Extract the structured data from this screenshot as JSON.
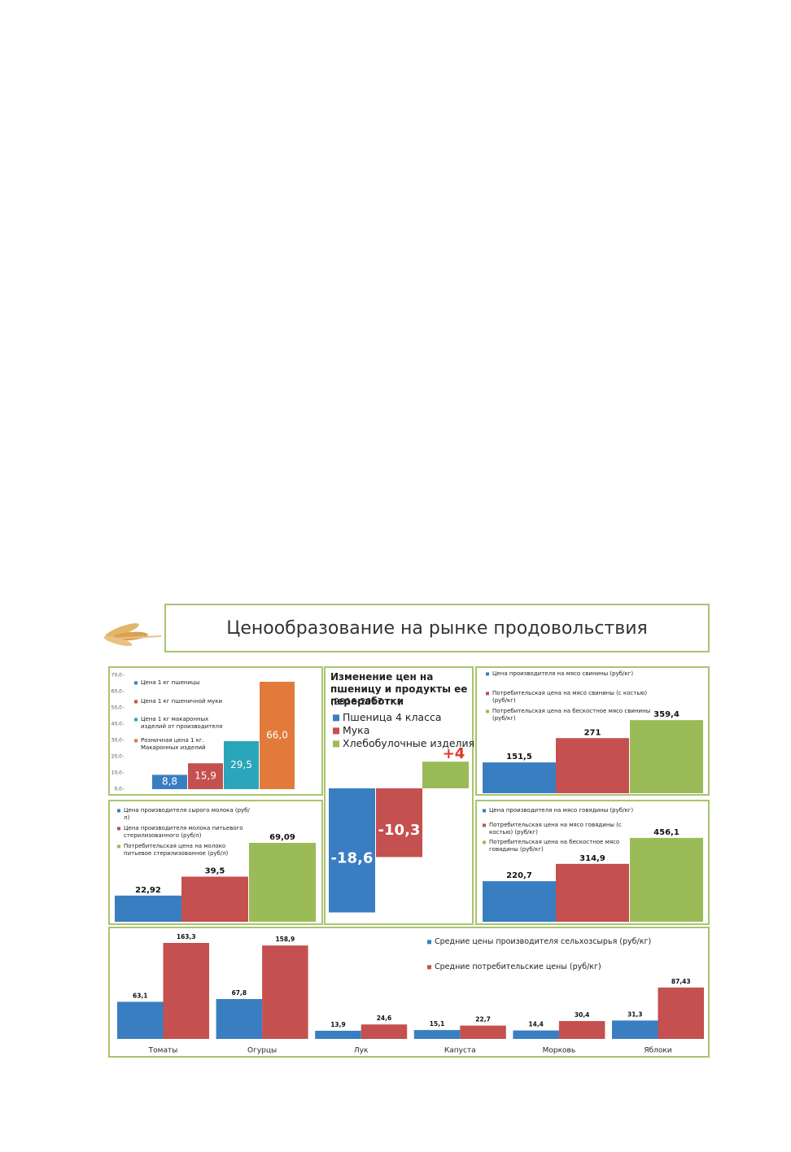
{
  "header": {
    "title": "Ценообразование на рынке продовольствия"
  },
  "chart_data": [
    {
      "type": "bar",
      "ylim": [
        0,
        70
      ],
      "yticks": [
        {
          "value": 0,
          "label": "0,0"
        },
        {
          "value": 10,
          "label": "10,0"
        },
        {
          "value": 20,
          "label": "20,0"
        },
        {
          "value": 30,
          "label": "30,0"
        },
        {
          "value": 40,
          "label": "40,0"
        },
        {
          "value": 50,
          "label": "50,0"
        },
        {
          "value": 60,
          "label": "60,0"
        },
        {
          "value": 70,
          "label": "70,0"
        }
      ],
      "series": [
        {
          "name": "Цена 1 кг пшеницы",
          "color": "#3a7ec2",
          "values": [
            8.8
          ],
          "value_labels": [
            "8,8"
          ]
        },
        {
          "name": "Цена 1 кг пшеничной муки",
          "color": "#c4504f",
          "values": [
            15.9
          ],
          "value_labels": [
            "15,9"
          ]
        },
        {
          "name": "Цена 1 кг макаронных изделий от производителя",
          "color": "#2ba5b9",
          "values": [
            29.5
          ],
          "value_labels": [
            "29,5"
          ]
        },
        {
          "name": "Розничная цена 1 кг. Макаронных изделий",
          "color": "#e27a3c",
          "values": [
            66.0
          ],
          "value_labels": [
            "66,0"
          ]
        }
      ]
    },
    {
      "type": "bar",
      "title": "Изменение цен на пшеницу и продукты ее переработки",
      "subtitle": "(2016-2017 гг.)",
      "series": [
        {
          "name": "Пшеница 4 класса",
          "color": "#3a7ec2",
          "values": [
            -18.6
          ],
          "value_labels": [
            "-18,6"
          ]
        },
        {
          "name": "Мука",
          "color": "#c4504f",
          "values": [
            -10.3
          ],
          "value_labels": [
            "-10,3"
          ]
        },
        {
          "name": "Хлебобулочные изделия",
          "color": "#9bbb59",
          "values": [
            4
          ],
          "value_labels": [
            "+4"
          ]
        }
      ]
    },
    {
      "type": "bar",
      "series": [
        {
          "name": "Цена производителя на мясо свинины (руб/кг)",
          "color": "#3a7ec2",
          "values": [
            151.5
          ],
          "value_labels": [
            "151,5"
          ]
        },
        {
          "name": "Потребительская цена на мясо свинины (с костью) (руб/кг)",
          "color": "#c4504f",
          "values": [
            271
          ],
          "value_labels": [
            "271"
          ]
        },
        {
          "name": "Потребительская цена на бескостное мясо свинины (руб/кг)",
          "color": "#9bbb59",
          "values": [
            359.4
          ],
          "value_labels": [
            "359,4"
          ]
        }
      ]
    },
    {
      "type": "bar",
      "series": [
        {
          "name": "Цена производителя сырого молока (руб/л)",
          "color": "#3a7ec2",
          "values": [
            22.92
          ],
          "value_labels": [
            "22,92"
          ]
        },
        {
          "name": "Цена производителя молока питьевого стерилизованного (руб/л)",
          "color": "#c4504f",
          "values": [
            39.5
          ],
          "value_labels": [
            "39,5"
          ]
        },
        {
          "name": "Потребительская цена на молоко питьевое стерилизованное (руб/л)",
          "color": "#9bbb59",
          "values": [
            69.09
          ],
          "value_labels": [
            "69,09"
          ]
        }
      ]
    },
    {
      "type": "bar",
      "series": [
        {
          "name": "Цена производителя на мясо говядины (руб/кг)",
          "color": "#3a7ec2",
          "values": [
            220.7
          ],
          "value_labels": [
            "220,7"
          ]
        },
        {
          "name": "Потребительская цена на мясо говядины (с костью) (руб/кг)",
          "color": "#c4504f",
          "values": [
            314.9
          ],
          "value_labels": [
            "314,9"
          ]
        },
        {
          "name": "Потребительская цена на бескостное мясо говядины (руб/кг)",
          "color": "#9bbb59",
          "values": [
            456.1
          ],
          "value_labels": [
            "456,1"
          ]
        }
      ]
    },
    {
      "type": "bar",
      "categories": [
        "Томаты",
        "Огурцы",
        "Лук",
        "Капуста",
        "Морковь",
        "Яблоки"
      ],
      "series": [
        {
          "name": "Средние цены производителя сельхозсырья (руб/кг)",
          "color": "#3a7ec2",
          "values": [
            63.1,
            67.8,
            13.9,
            15.1,
            14.4,
            31.3
          ],
          "value_labels": [
            "63,1",
            "67,8",
            "13,9",
            "15,1",
            "14,4",
            "31,3"
          ]
        },
        {
          "name": "Средние потребительские цены (руб/кг)",
          "color": "#c4504f",
          "values": [
            163.3,
            158.9,
            24.6,
            22.7,
            30.4,
            87.43
          ],
          "value_labels": [
            "163,3",
            "158,9",
            "24,6",
            "22,7",
            "30,4",
            "87,43"
          ]
        }
      ]
    }
  ]
}
